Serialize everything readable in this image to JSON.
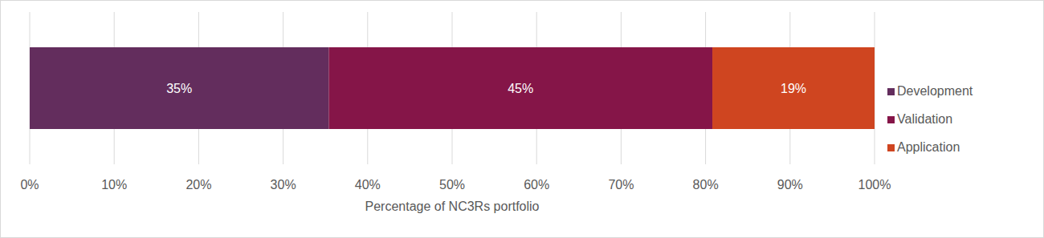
{
  "chart_data": {
    "type": "bar",
    "orientation": "horizontal",
    "stacked": true,
    "categories": [
      null
    ],
    "series": [
      {
        "name": "Development",
        "color": "#632d5d",
        "values": [
          35.4
        ],
        "value_labels": [
          "35%"
        ]
      },
      {
        "name": "Validation",
        "color": "#851548",
        "values": [
          45.4
        ],
        "value_labels": [
          "45%"
        ]
      },
      {
        "name": "Application",
        "color": "#cf4520",
        "values": [
          19.2
        ],
        "value_labels": [
          "19%"
        ]
      }
    ],
    "xlabel": "Percentage of NC3Rs portfolio",
    "xlim": [
      0,
      100
    ],
    "xticks": [
      {
        "value": 0,
        "label": "0%"
      },
      {
        "value": 10,
        "label": "10%"
      },
      {
        "value": 20,
        "label": "20%"
      },
      {
        "value": 30,
        "label": "30%"
      },
      {
        "value": 40,
        "label": "40%"
      },
      {
        "value": 50,
        "label": "50%"
      },
      {
        "value": 60,
        "label": "60%"
      },
      {
        "value": 70,
        "label": "70%"
      },
      {
        "value": 80,
        "label": "80%"
      },
      {
        "value": 90,
        "label": "90%"
      },
      {
        "value": 100,
        "label": "100%"
      }
    ],
    "grid": true,
    "data_labels": true,
    "legend": "right"
  }
}
